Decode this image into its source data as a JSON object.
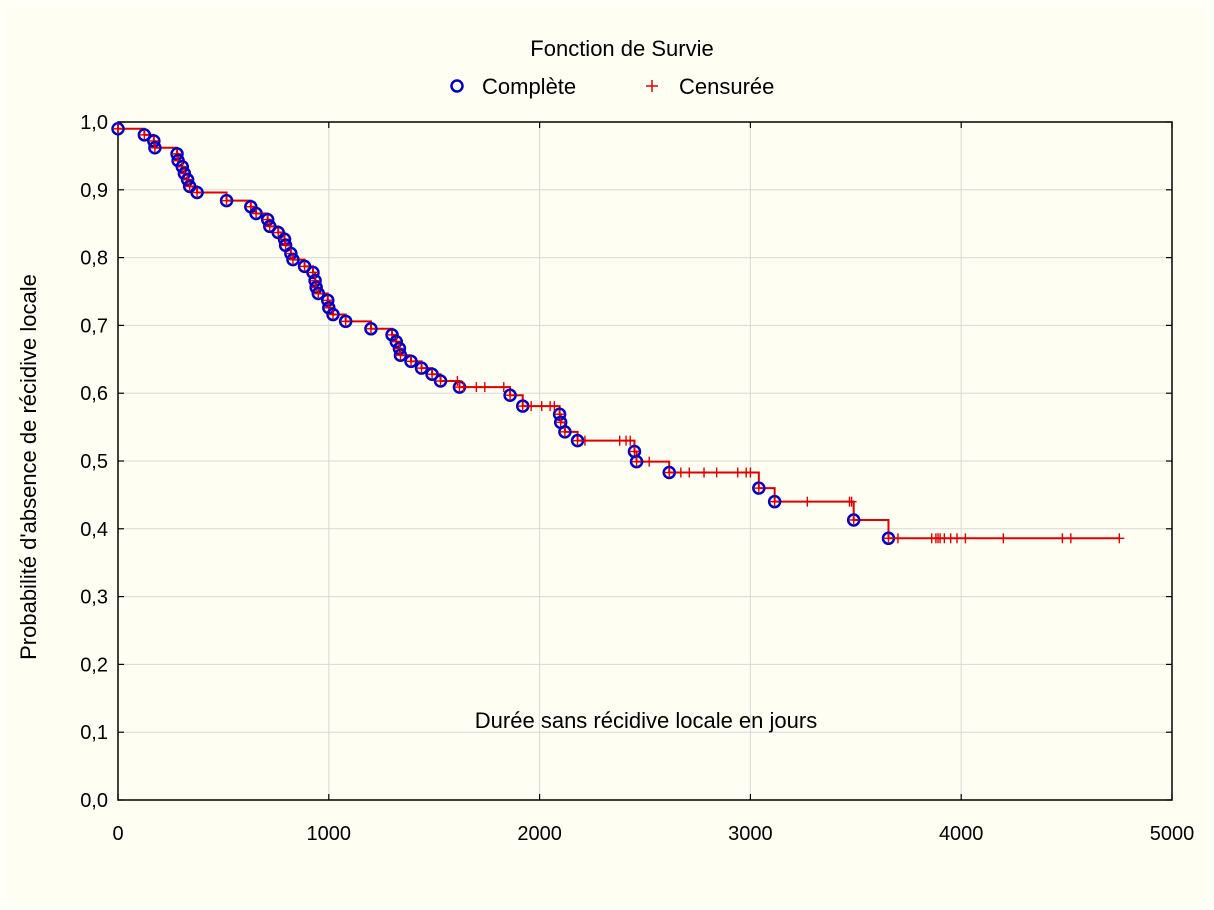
{
  "chart_data": {
    "type": "line",
    "subtype": "kaplan-meier-step",
    "title": "Fonction de Survie",
    "xlabel": "Durée sans récidive locale en jours",
    "ylabel": "Probabilité d'absence de récidive locale",
    "xlim": [
      0,
      5000
    ],
    "ylim": [
      0,
      1
    ],
    "xticks": [
      0,
      1000,
      2000,
      3000,
      4000,
      5000
    ],
    "xtick_labels": [
      "0",
      "1000",
      "2000",
      "3000",
      "4000",
      "5000"
    ],
    "yticks": [
      0,
      0.1,
      0.2,
      0.3,
      0.4,
      0.5,
      0.6,
      0.7,
      0.8,
      0.9,
      1.0
    ],
    "ytick_labels": [
      "0,0",
      "0,1",
      "0,2",
      "0,3",
      "0,4",
      "0,5",
      "0,6",
      "0,7",
      "0,8",
      "0,9",
      "1,0"
    ],
    "grid": true,
    "legend_position": "top",
    "legend": [
      {
        "name": "Complète",
        "marker": "circle",
        "color": "#0000cc"
      },
      {
        "name": "Censurée",
        "marker": "plus",
        "color": "#e00000"
      }
    ],
    "line_color": "#e00000",
    "start": {
      "x": 0,
      "y": 1.0
    },
    "events": [
      [
        0,
        0.99
      ],
      [
        125,
        0.981
      ],
      [
        170,
        0.972
      ],
      [
        175,
        0.962
      ],
      [
        280,
        0.953
      ],
      [
        285,
        0.943
      ],
      [
        305,
        0.934
      ],
      [
        315,
        0.924
      ],
      [
        330,
        0.915
      ],
      [
        340,
        0.905
      ],
      [
        375,
        0.896
      ],
      [
        515,
        0.884
      ],
      [
        630,
        0.875
      ],
      [
        655,
        0.865
      ],
      [
        710,
        0.856
      ],
      [
        720,
        0.846
      ],
      [
        760,
        0.837
      ],
      [
        790,
        0.827
      ],
      [
        795,
        0.818
      ],
      [
        820,
        0.806
      ],
      [
        830,
        0.797
      ],
      [
        885,
        0.787
      ],
      [
        925,
        0.778
      ],
      [
        935,
        0.766
      ],
      [
        940,
        0.756
      ],
      [
        950,
        0.747
      ],
      [
        995,
        0.737
      ],
      [
        1000,
        0.726
      ],
      [
        1020,
        0.716
      ],
      [
        1080,
        0.706
      ],
      [
        1200,
        0.695
      ],
      [
        1300,
        0.686
      ],
      [
        1320,
        0.676
      ],
      [
        1335,
        0.666
      ],
      [
        1340,
        0.656
      ],
      [
        1390,
        0.647
      ],
      [
        1440,
        0.637
      ],
      [
        1490,
        0.628
      ],
      [
        1530,
        0.618
      ],
      [
        1620,
        0.609
      ],
      [
        1860,
        0.597
      ],
      [
        1920,
        0.581
      ],
      [
        2095,
        0.569
      ],
      [
        2100,
        0.557
      ],
      [
        2120,
        0.543
      ],
      [
        2180,
        0.53
      ],
      [
        2450,
        0.514
      ],
      [
        2460,
        0.499
      ],
      [
        2615,
        0.483
      ],
      [
        3040,
        0.46
      ],
      [
        3115,
        0.44
      ],
      [
        3490,
        0.413
      ],
      [
        3655,
        0.386
      ]
    ],
    "censored": [
      1610,
      1640,
      1700,
      1740,
      1830,
      1960,
      2010,
      2050,
      2070,
      2215,
      2380,
      2410,
      2430,
      2520,
      2670,
      2710,
      2780,
      2840,
      2940,
      2980,
      3000,
      3270,
      3470,
      3480,
      3700,
      3860,
      3880,
      3890,
      3900,
      3920,
      3950,
      3980,
      4020,
      4200,
      4480,
      4520,
      4750
    ]
  }
}
